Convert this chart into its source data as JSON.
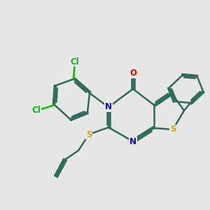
{
  "background_color": "#e6e6e6",
  "bond_color": "#2d6b5a",
  "bond_width": 1.8,
  "atom_colors": {
    "N": "#0000ee",
    "S": "#ccaa00",
    "O": "#ee0000",
    "Cl": "#00bb00",
    "C": "#2d6b5a"
  },
  "font_size": 8.5,
  "figsize": [
    3.0,
    3.0
  ],
  "dpi": 100
}
